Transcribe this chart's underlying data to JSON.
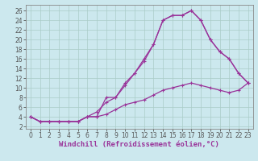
{
  "background_color": "#cce8ee",
  "grid_color": "#aaccc8",
  "line_color": "#993399",
  "xlabel": "Windchill (Refroidissement éolien,°C)",
  "xlim_min": -0.5,
  "xlim_max": 23.5,
  "ylim_min": 1.5,
  "ylim_max": 27.2,
  "xticks": [
    0,
    1,
    2,
    3,
    4,
    5,
    6,
    7,
    8,
    9,
    10,
    11,
    12,
    13,
    14,
    15,
    16,
    17,
    18,
    19,
    20,
    21,
    22,
    23
  ],
  "yticks": [
    2,
    4,
    6,
    8,
    10,
    12,
    14,
    16,
    18,
    20,
    22,
    24,
    26
  ],
  "curve1_x": [
    0,
    1,
    2,
    3,
    4,
    5,
    6,
    7,
    8,
    9,
    10,
    11,
    12,
    13,
    14,
    15,
    16,
    17,
    18,
    19,
    20,
    21,
    22,
    23
  ],
  "curve1_y": [
    4,
    3,
    3,
    3,
    3,
    3,
    4,
    4,
    8,
    8,
    11,
    13,
    16,
    19,
    24,
    25,
    25,
    26,
    24,
    20,
    17.5,
    16,
    13,
    11
  ],
  "curve2_x": [
    0,
    1,
    2,
    3,
    4,
    5,
    6,
    7,
    8,
    9,
    10,
    11,
    12,
    13,
    14,
    15,
    16,
    17,
    18,
    19,
    20,
    21,
    22,
    23
  ],
  "curve2_y": [
    4,
    3,
    3,
    3,
    3,
    3,
    4,
    5,
    7,
    8,
    10.5,
    13,
    15.5,
    19,
    24,
    25,
    25,
    26,
    24,
    20,
    17.5,
    16,
    13,
    11
  ],
  "curve3_x": [
    0,
    1,
    2,
    3,
    4,
    5,
    6,
    7,
    8,
    9,
    10,
    11,
    12,
    13,
    14,
    15,
    16,
    17,
    18,
    19,
    20,
    21,
    22,
    23
  ],
  "curve3_y": [
    4,
    3,
    3,
    3,
    3,
    3,
    4,
    4,
    4.5,
    5.5,
    6.5,
    7,
    7.5,
    8.5,
    9.5,
    10,
    10.5,
    11,
    10.5,
    10,
    9.5,
    9,
    9.5,
    11
  ],
  "linewidth": 0.9,
  "markersize": 3.0,
  "tick_fontsize": 5.5,
  "xlabel_fontsize": 6.5
}
